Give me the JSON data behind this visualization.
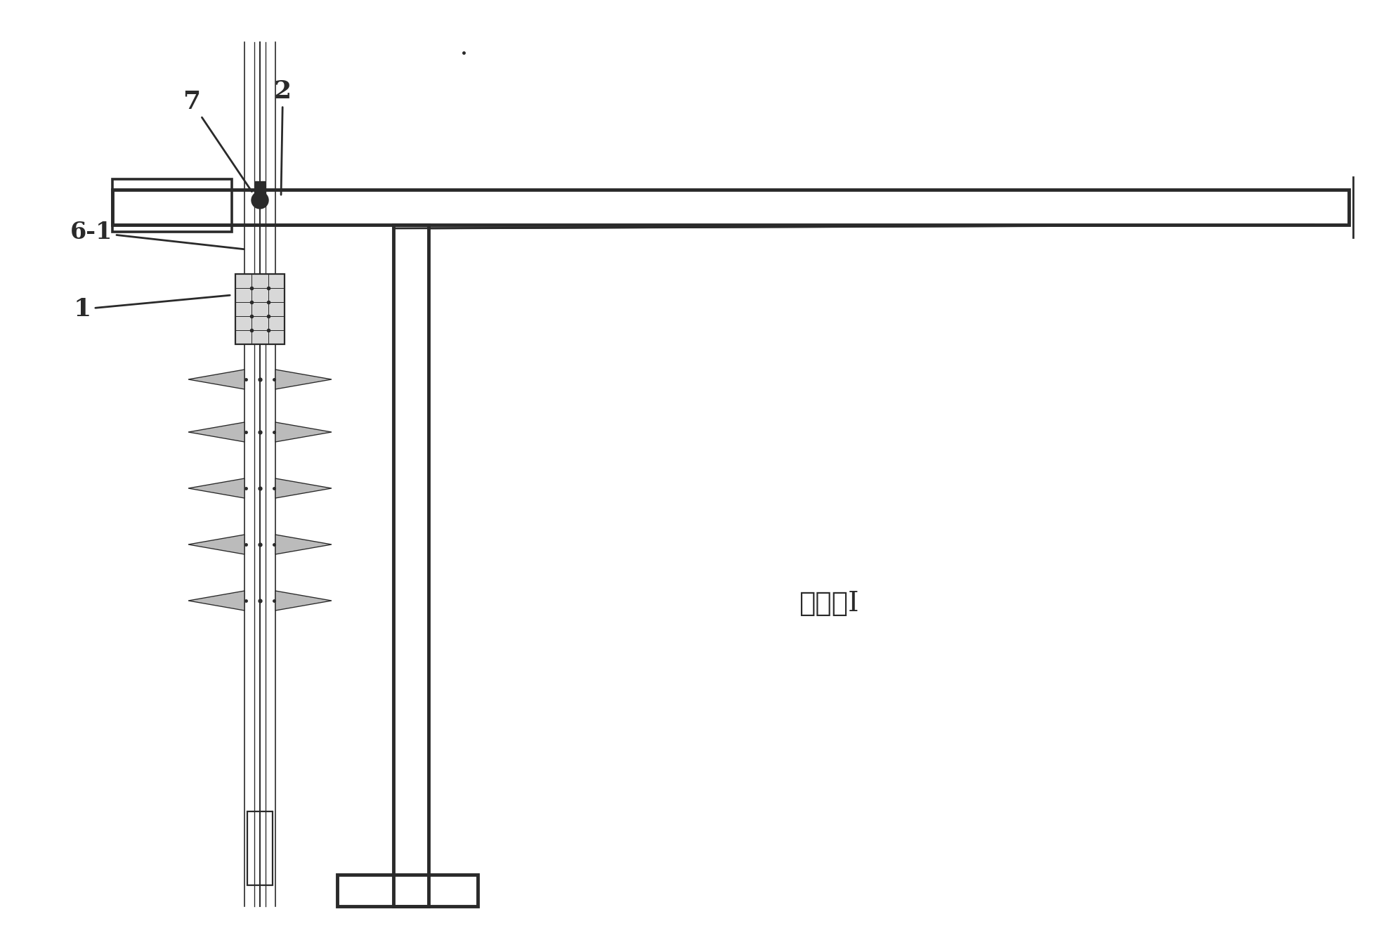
{
  "bg_color": "#ffffff",
  "line_color": "#2a2a2a",
  "lw_thin": 1.2,
  "lw_med": 2.0,
  "lw_thick": 3.5,
  "figsize": [
    19.8,
    13.38
  ],
  "dpi": 100,
  "label_text": "放大图I"
}
